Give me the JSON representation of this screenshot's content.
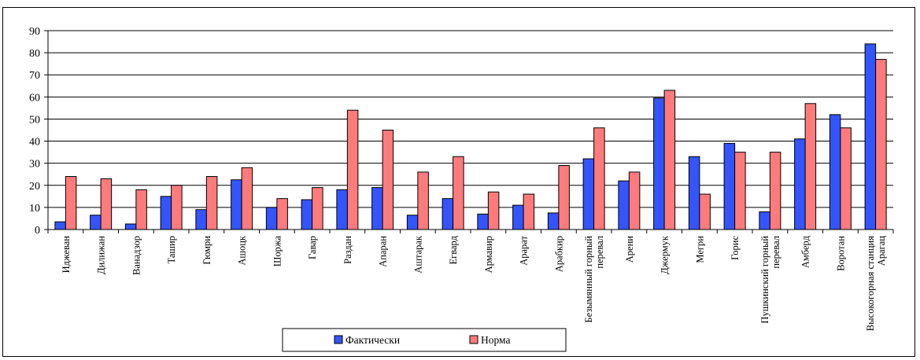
{
  "chart_data": {
    "type": "bar",
    "title": "",
    "xlabel": "",
    "ylabel": "",
    "ylim": [
      0,
      90
    ],
    "yticks": [
      0,
      10,
      20,
      30,
      40,
      50,
      60,
      70,
      80,
      90
    ],
    "grid": true,
    "legend_position": "bottom",
    "categories": [
      [
        "Иджеван"
      ],
      [
        "Дилижан"
      ],
      [
        "Ванадзор"
      ],
      [
        "Ташир"
      ],
      [
        "Гюмри"
      ],
      [
        "Ашоцк"
      ],
      [
        "Шоржа"
      ],
      [
        "Гавар"
      ],
      [
        "Раздан"
      ],
      [
        "Апаран"
      ],
      [
        "Аштарак"
      ],
      [
        "Егвард"
      ],
      [
        "Армавир"
      ],
      [
        "Арарат"
      ],
      [
        "Арабкир"
      ],
      [
        "Безымянный горный",
        "перевал"
      ],
      [
        "Арени"
      ],
      [
        "Джермук"
      ],
      [
        "Мегри"
      ],
      [
        "Горис"
      ],
      [
        "Пушкинский горный",
        "перевал"
      ],
      [
        "Амберд"
      ],
      [
        "Воротан"
      ],
      [
        "Высокогорная станция",
        "Арагац"
      ]
    ],
    "series": [
      {
        "name": "Фактически",
        "color": "#3355ff",
        "values": [
          3.5,
          6.5,
          2.5,
          15,
          9,
          22.5,
          10,
          13.5,
          18,
          19,
          6.5,
          14,
          7,
          11,
          7.5,
          32,
          22,
          59.5,
          33,
          39,
          8,
          41,
          52,
          84
        ]
      },
      {
        "name": "Норма",
        "color": "#ff7b7b",
        "values": [
          24,
          23,
          18,
          20,
          24,
          28,
          14,
          19,
          54,
          45,
          26,
          33,
          17,
          16,
          29,
          46,
          26,
          63,
          16,
          35,
          35,
          57,
          46,
          77
        ]
      }
    ]
  }
}
